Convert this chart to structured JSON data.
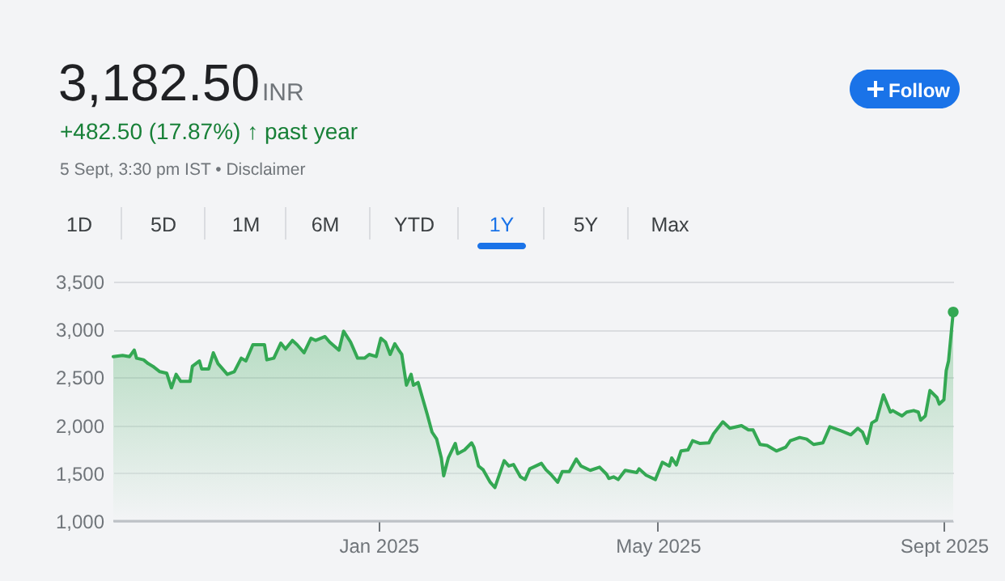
{
  "chart_data": {
    "type": "area",
    "title": "3,182.50",
    "annotations": [
      "INR",
      "+482.50 (17.87%) ↑ past year",
      "5 Sept, 3:30 pm IST • Disclaimer",
      "Follow",
      "1D",
      "5D",
      "1M",
      "6M",
      "YTD",
      "1Y",
      "5Y",
      "Max"
    ],
    "x": [
      "2024-09-09",
      "2024-09-13",
      "2024-09-16",
      "2024-09-18",
      "2024-09-19",
      "2024-09-22",
      "2024-09-24",
      "2024-09-26",
      "2024-09-29",
      "2024-10-02",
      "2024-10-04",
      "2024-10-06",
      "2024-10-08",
      "2024-10-12",
      "2024-10-13",
      "2024-10-16",
      "2024-10-17",
      "2024-10-20",
      "2024-10-22",
      "2024-10-24",
      "2024-10-25",
      "2024-10-28",
      "2024-10-31",
      "2024-11-03",
      "2024-11-05",
      "2024-11-08",
      "2024-11-13",
      "2024-11-14",
      "2024-11-17",
      "2024-11-20",
      "2024-11-22",
      "2024-11-25",
      "2024-11-27",
      "2024-11-30",
      "2024-12-03",
      "2024-12-05",
      "2024-12-09",
      "2024-12-11",
      "2024-12-15",
      "2024-12-17",
      "2024-12-20",
      "2024-12-23",
      "2024-12-26",
      "2024-12-28",
      "2024-12-31",
      "2025-01-02",
      "2025-01-04",
      "2025-01-06",
      "2025-01-08",
      "2025-01-10",
      "2025-01-11",
      "2025-01-13",
      "2025-01-15",
      "2025-01-16",
      "2025-01-18",
      "2025-01-20",
      "2025-01-22",
      "2025-01-24",
      "2025-01-26",
      "2025-01-28",
      "2025-01-29",
      "2025-01-31",
      "2025-02-03",
      "2025-02-04",
      "2025-02-07",
      "2025-02-10",
      "2025-02-11",
      "2025-02-13",
      "2025-02-15",
      "2025-02-18",
      "2025-02-20",
      "2025-02-24",
      "2025-02-26",
      "2025-02-28",
      "2025-03-03",
      "2025-03-05",
      "2025-03-07",
      "2025-03-12",
      "2025-03-14",
      "2025-03-16",
      "2025-03-19",
      "2025-03-21",
      "2025-03-24",
      "2025-03-27",
      "2025-03-29",
      "2025-04-02",
      "2025-04-06",
      "2025-04-09",
      "2025-04-10",
      "2025-04-12",
      "2025-04-14",
      "2025-04-17",
      "2025-04-22",
      "2025-04-23",
      "2025-04-26",
      "2025-04-30",
      "2025-05-03",
      "2025-05-06",
      "2025-05-07",
      "2025-05-09",
      "2025-05-11",
      "2025-05-14",
      "2025-05-16",
      "2025-05-19",
      "2025-05-23",
      "2025-05-25",
      "2025-05-29",
      "2025-06-01",
      "2025-06-06",
      "2025-06-09",
      "2025-06-11",
      "2025-06-14",
      "2025-06-17",
      "2025-06-21",
      "2025-06-25",
      "2025-06-27",
      "2025-07-01",
      "2025-07-04",
      "2025-07-07",
      "2025-07-11",
      "2025-07-14",
      "2025-07-19",
      "2025-07-23",
      "2025-07-26",
      "2025-07-28",
      "2025-07-30",
      "2025-08-01",
      "2025-08-03",
      "2025-08-06",
      "2025-08-09",
      "2025-08-10",
      "2025-08-12",
      "2025-08-14",
      "2025-08-16",
      "2025-08-19",
      "2025-08-21",
      "2025-08-22",
      "2025-08-24",
      "2025-08-26",
      "2025-08-29",
      "2025-08-30",
      "2025-09-01",
      "2025-09-02",
      "2025-09-03",
      "2025-09-05"
    ],
    "series": [
      {
        "color": "#34a853",
        "values": [
          2717,
          2729,
          2717,
          2785,
          2701,
          2684,
          2644,
          2616,
          2560,
          2543,
          2391,
          2532,
          2458,
          2458,
          2616,
          2672,
          2588,
          2588,
          2757,
          2644,
          2616,
          2532,
          2560,
          2701,
          2672,
          2841,
          2841,
          2684,
          2701,
          2858,
          2796,
          2886,
          2841,
          2757,
          2909,
          2886,
          2926,
          2869,
          2785,
          2982,
          2869,
          2701,
          2701,
          2740,
          2717,
          2909,
          2869,
          2740,
          2852,
          2774,
          2740,
          2419,
          2532,
          2419,
          2447,
          2278,
          2109,
          1929,
          1856,
          1659,
          1473,
          1659,
          1811,
          1704,
          1743,
          1817,
          1772,
          1575,
          1535,
          1406,
          1350,
          1631,
          1575,
          1591,
          1462,
          1434,
          1546,
          1603,
          1535,
          1490,
          1406,
          1518,
          1518,
          1648,
          1575,
          1530,
          1563,
          1490,
          1445,
          1462,
          1434,
          1530,
          1507,
          1546,
          1479,
          1434,
          1614,
          1575,
          1659,
          1586,
          1732,
          1743,
          1839,
          1811,
          1817,
          1912,
          2036,
          1969,
          1997,
          1952,
          1952,
          1800,
          1789,
          1732,
          1772,
          1839,
          1873,
          1856,
          1800,
          1817,
          1985,
          1941,
          1901,
          1969,
          1929,
          1811,
          2025,
          2053,
          2318,
          2138,
          2154,
          2126,
          2098,
          2138,
          2154,
          2138,
          2053,
          2098,
          2363,
          2290,
          2222,
          2267,
          2571,
          2673,
          3182.5
        ]
      }
    ],
    "xlim": [
      "2024-09-09",
      "2025-09-05"
    ],
    "xticks": [
      {
        "value": "2025-01-01",
        "label": "Jan 2025"
      },
      {
        "value": "2025-05-01",
        "label": "May 2025"
      },
      {
        "value": "2025-09-01",
        "label": "Sept 2025"
      }
    ],
    "ylim": [
      1000,
      3500
    ],
    "yticks": [
      {
        "value": 1000,
        "label": "1,000"
      },
      {
        "value": 1500,
        "label": "1,500"
      },
      {
        "value": 2000,
        "label": "2,000"
      },
      {
        "value": 2500,
        "label": "2,500"
      },
      {
        "value": 3000,
        "label": "3,000"
      },
      {
        "value": 3500,
        "label": "3,500"
      }
    ],
    "grid": "y"
  }
}
